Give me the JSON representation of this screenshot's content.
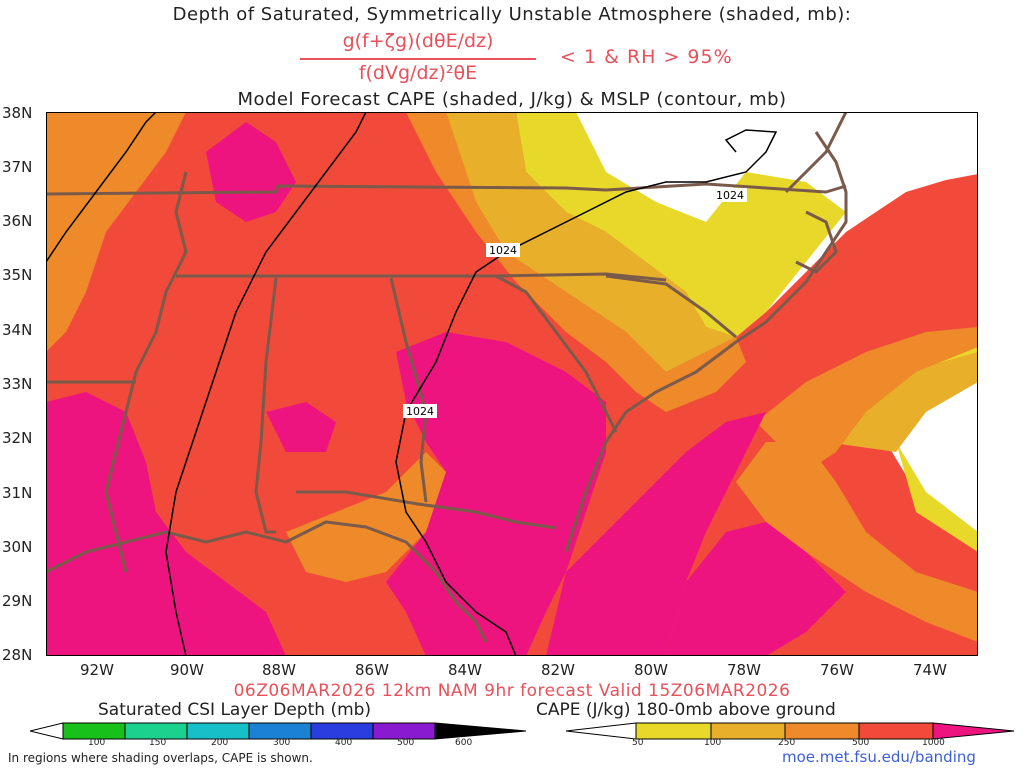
{
  "title": {
    "line1": "Depth of Saturated, Symmetrically Unstable Atmosphere (shaded, mb):",
    "numerator": "g(f+ζg)(dθE/dz)",
    "denominator": "f(dVg/dz)²θE",
    "condition": "< 1 & RH > 95%",
    "line3": "Model Forecast CAPE (shaded, J/kg) & MSLP (contour, mb)"
  },
  "axes": {
    "lat_labels": [
      "38N",
      "37N",
      "36N",
      "35N",
      "34N",
      "33N",
      "32N",
      "31N",
      "30N",
      "29N",
      "28N"
    ],
    "lon_labels": [
      "92W",
      "90W",
      "88W",
      "86W",
      "84W",
      "82W",
      "80W",
      "78W",
      "76W",
      "74W"
    ]
  },
  "valid_line": "06Z06MAR2026 12km NAM 9hr forecast Valid 15Z06MAR2026",
  "contour_labels": [
    "1024",
    "1024",
    "1024"
  ],
  "colorbar_csi": {
    "title": "Saturated CSI Layer Depth (mb)",
    "ticks": [
      "100",
      "150",
      "200",
      "300",
      "400",
      "500",
      "600"
    ],
    "colors": [
      "#ffffff",
      "#17c11a",
      "#1ad18e",
      "#17bfc9",
      "#1b82d3",
      "#2a3ee0",
      "#8a1ad0",
      "#000000"
    ]
  },
  "colorbar_cape": {
    "title": "CAPE (J/kg) 180-0mb above ground",
    "ticks": [
      "50",
      "100",
      "250",
      "500",
      "1000"
    ],
    "colors": [
      "#ffffff",
      "#e8d82a",
      "#e8b02a",
      "#ef8a2a",
      "#f24a3a",
      "#ee1480"
    ]
  },
  "footnote": "In regions where shading overlaps, CAPE is shown.",
  "credit": "moe.met.fsu.edu/banding",
  "colors": {
    "cape_1000": "#ee1480",
    "cape_500": "#f24a3a",
    "cape_250": "#ef8a2a",
    "cape_100": "#e8b02a",
    "cape_50": "#e8d82a",
    "state_lines": "#7a5a4a",
    "isobar": "#000000",
    "title_accent": "#e8505a"
  }
}
